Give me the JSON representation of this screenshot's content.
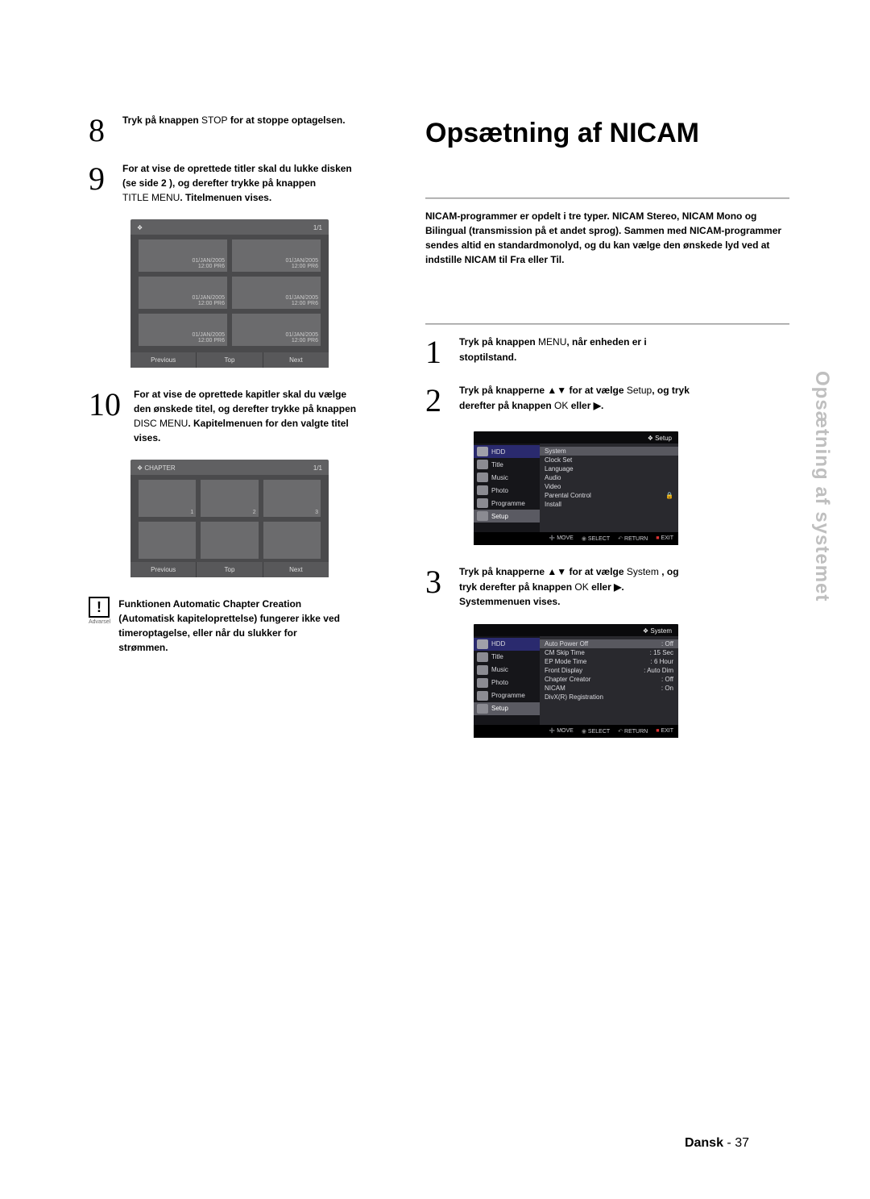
{
  "left": {
    "step8": {
      "num": "8",
      "pre": "Tryk på knappen ",
      "btn": "STOP",
      "post": " for at stoppe optagelsen."
    },
    "step9": {
      "num": "9",
      "l1": "For at vise de oprettede titler skal du lukke disken",
      "l2a": "(se side ",
      "l2b": "2",
      "l2c": " ), og derefter trykke på knappen",
      "l3a": "TITLE MENU",
      "l3b": ". Titelmenuen vises."
    },
    "titleGrid": {
      "pager": "1/1",
      "cells": [
        {
          "date": "01/JAN/2005",
          "info": "12:00  PR6"
        },
        {
          "date": "01/JAN/2005",
          "info": "12:00  PR6"
        },
        {
          "date": "01/JAN/2005",
          "info": "12:00  PR6"
        },
        {
          "date": "01/JAN/2005",
          "info": "12:00  PR6"
        },
        {
          "date": "01/JAN/2005",
          "info": "12:00  PR6"
        },
        {
          "date": "01/JAN/2005",
          "info": "12:00  PR6"
        }
      ],
      "foot": [
        "Previous",
        "Top",
        "Next"
      ]
    },
    "step10": {
      "num": "10",
      "l1": "For at vise de oprettede kapitler skal du vælge",
      "l2": "den ønskede titel, og derefter trykke på knappen",
      "l3a": "DISC MENU",
      "l3b": ". Kapitelmenuen for den valgte titel",
      "l4": "vises."
    },
    "chapterGrid": {
      "title": "CHAPTER",
      "pager": "1/1",
      "cells": [
        "1",
        "2",
        "3",
        "",
        "",
        ""
      ],
      "foot": [
        "Previous",
        "Top",
        "Next"
      ]
    },
    "warn": {
      "cap": "Advarsel",
      "l1": "Funktionen Automatic Chapter Creation",
      "l2": "(Automatisk kapiteloprettelse) fungerer ikke ved",
      "l3": "timeroptagelse, eller når du slukker for",
      "l4": "strømmen."
    }
  },
  "right": {
    "title": "Opsætning af NICAM",
    "intro": "NICAM-programmer er opdelt i tre typer. NICAM Stereo, NICAM Mono og Bilingual (transmission på et andet sprog). Sammen med NICAM-programmer sendes altid en standardmonolyd, og du kan vælge den ønskede lyd ved at indstille NICAM til Fra eller Til.",
    "step1": {
      "num": "1",
      "a": "Tryk på knappen ",
      "b": "MENU",
      "c": ", når enheden er i",
      "d": "stoptilstand."
    },
    "step2": {
      "num": "2",
      "a": "Tryk på knapperne ",
      "arrows": "▲▼",
      "b": " for at vælge ",
      "c": "Setup",
      "d": ", og tryk",
      "e": "derefter på knappen ",
      "f": "OK",
      "g": " eller ",
      "h": "▶",
      "i": "."
    },
    "step3": {
      "num": "3",
      "a": "Tryk på knapperne ",
      "arrows": "▲▼",
      "b": " for at vælge ",
      "c": "System",
      "d": " , og",
      "e": "tryk derefter på knappen ",
      "f": "OK",
      "g": " eller ",
      "h": "▶",
      "i": ".",
      "j": "Systemmenuen vises."
    },
    "menu1": {
      "top": "Setup",
      "side": [
        {
          "label": "HDD",
          "cls": "hdd"
        },
        {
          "label": "Title",
          "cls": ""
        },
        {
          "label": "Music",
          "cls": ""
        },
        {
          "label": "Photo",
          "cls": ""
        },
        {
          "label": "Programme",
          "cls": ""
        },
        {
          "label": "Setup",
          "cls": "sel"
        }
      ],
      "main": [
        {
          "k": "System",
          "v": "",
          "hi": true
        },
        {
          "k": "Clock Set",
          "v": ""
        },
        {
          "k": "Language",
          "v": ""
        },
        {
          "k": "Audio",
          "v": ""
        },
        {
          "k": "Video",
          "v": ""
        },
        {
          "k": "Parental Control",
          "v": "🔒"
        },
        {
          "k": "Install",
          "v": ""
        }
      ],
      "foot": [
        "MOVE",
        "SELECT",
        "RETURN",
        "EXIT"
      ]
    },
    "menu2": {
      "top": "System",
      "side": [
        {
          "label": "HDD",
          "cls": "hdd"
        },
        {
          "label": "Title",
          "cls": ""
        },
        {
          "label": "Music",
          "cls": ""
        },
        {
          "label": "Photo",
          "cls": ""
        },
        {
          "label": "Programme",
          "cls": ""
        },
        {
          "label": "Setup",
          "cls": "sel"
        }
      ],
      "main": [
        {
          "k": "Auto Power Off",
          "v": ": Off",
          "hi": true
        },
        {
          "k": "CM Skip Time",
          "v": ": 15 Sec"
        },
        {
          "k": "EP Mode Time",
          "v": ": 6 Hour"
        },
        {
          "k": "Front Display",
          "v": ": Auto Dim"
        },
        {
          "k": "Chapter Creator",
          "v": ": Off"
        },
        {
          "k": "NICAM",
          "v": ": On"
        },
        {
          "k": "DivX(R) Registration",
          "v": ""
        }
      ],
      "foot": [
        "MOVE",
        "SELECT",
        "RETURN",
        "EXIT"
      ]
    }
  },
  "sideLabel": "Opsætning af systemet",
  "footer": {
    "lang": "Dansk",
    "sep": " - ",
    "page": "37"
  }
}
